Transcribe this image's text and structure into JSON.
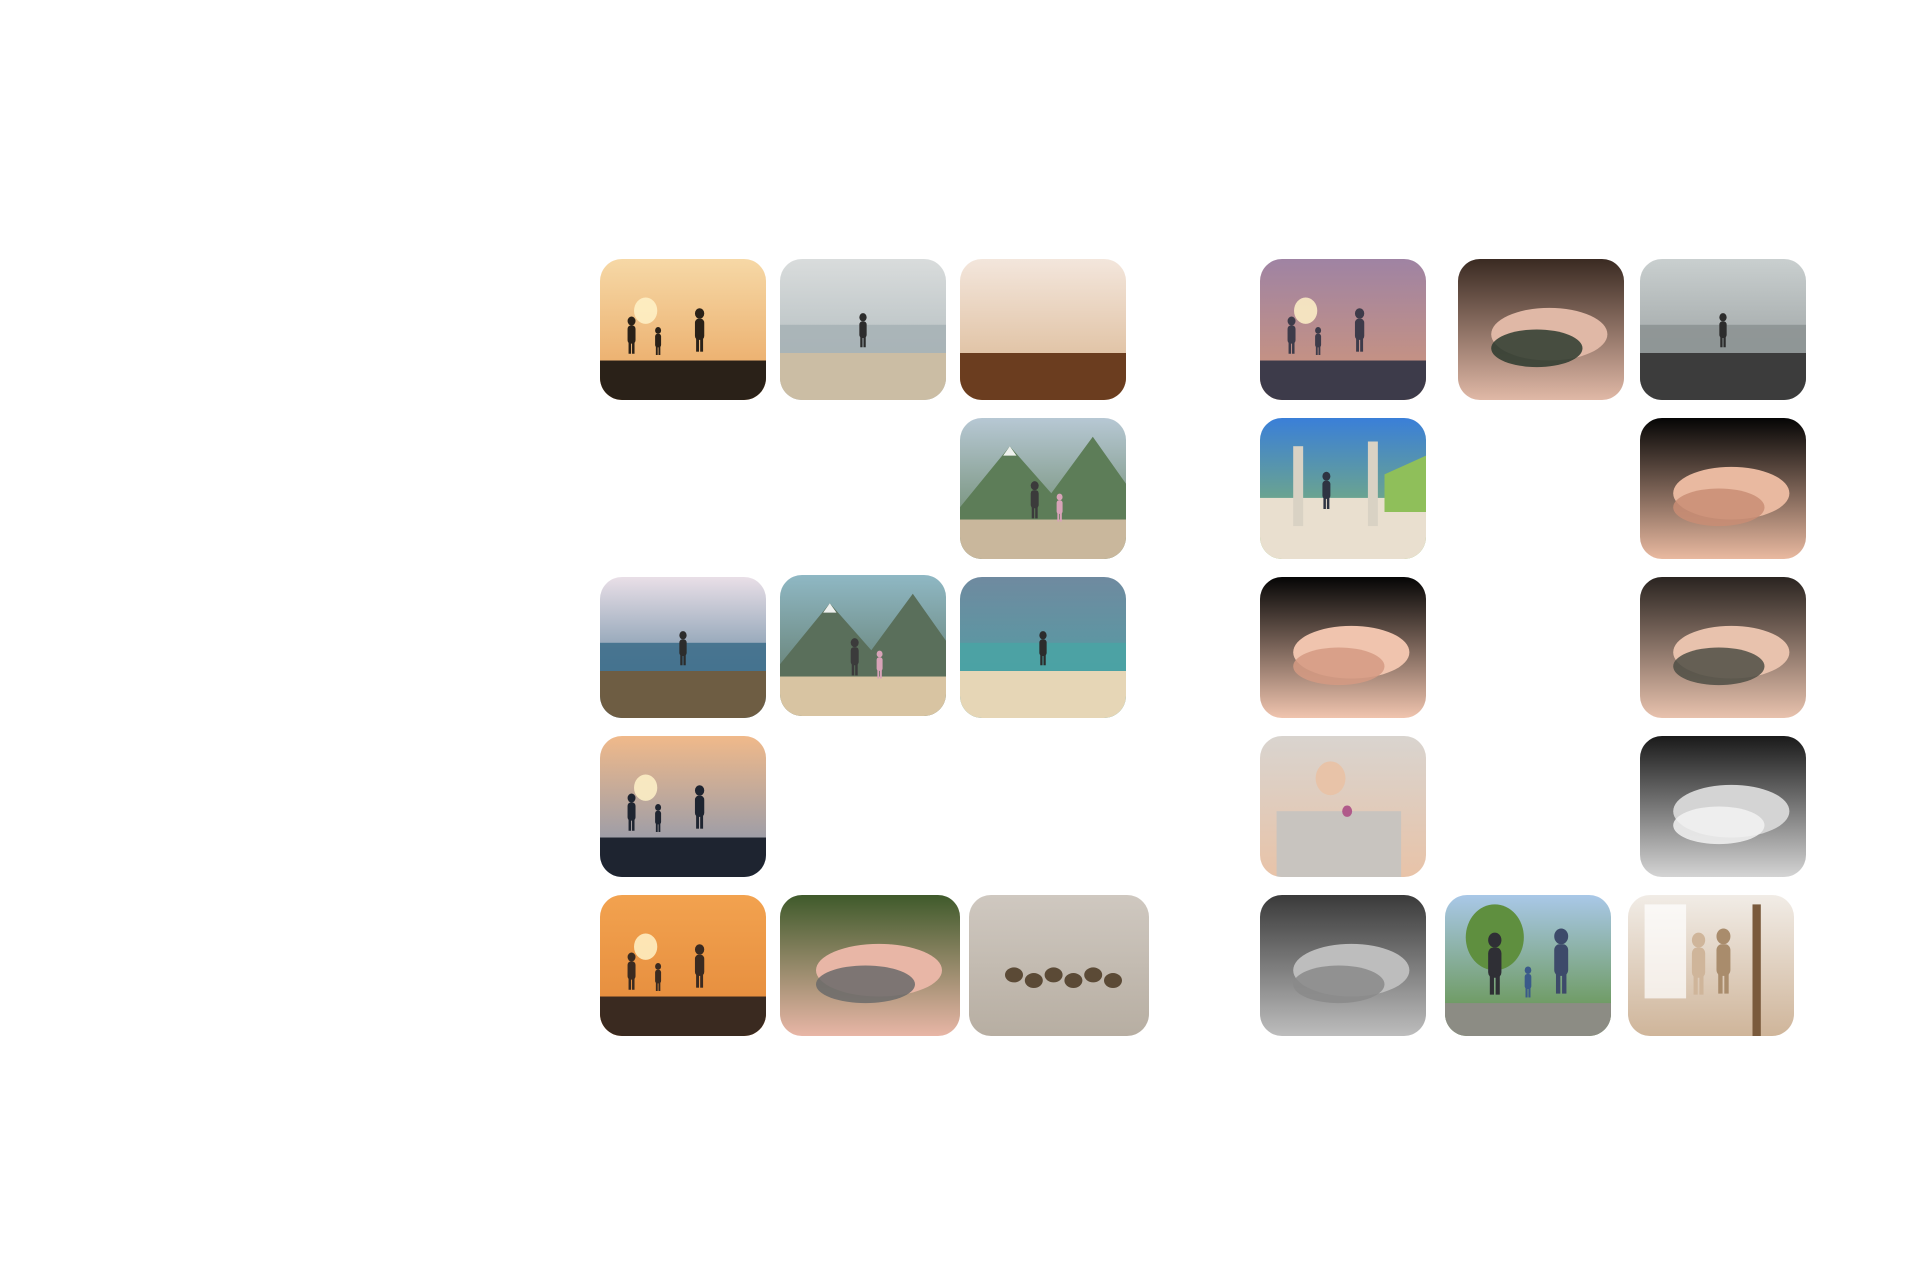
{
  "gallery": {
    "photos": [
      {
        "name": "photo-family-sunset-silhouette",
        "scene": "sunset",
        "colors": [
          "#f6d8a6",
          "#e9a45e",
          "#2a2118"
        ]
      },
      {
        "name": "photo-family-beach-gray",
        "scene": "beach",
        "colors": [
          "#d9dcdc",
          "#a7b3b6",
          "#cbbda4"
        ]
      },
      {
        "name": "photo-mother-child-beach-hug",
        "scene": "beach-warm",
        "colors": [
          "#f3e6dc",
          "#d9b48d",
          "#6b3d1f"
        ]
      },
      {
        "name": "photo-parent-child-lake",
        "scene": "mountain-lake",
        "colors": [
          "#b7c8d4",
          "#5d7d58",
          "#c9b79c"
        ]
      },
      {
        "name": "photo-child-ocean-cliff",
        "scene": "ocean",
        "colors": [
          "#e9dfe7",
          "#3f6f8c",
          "#6e5d43"
        ]
      },
      {
        "name": "photo-family-mountain-beach",
        "scene": "mountain",
        "colors": [
          "#8fb8c4",
          "#5a6f5b",
          "#d8c4a2"
        ]
      },
      {
        "name": "photo-beach-cloudy-sky",
        "scene": "cloudy-beach",
        "colors": [
          "#6f8aa0",
          "#4aa3a4",
          "#e6d6b6"
        ]
      },
      {
        "name": "photo-family-pier-sunset",
        "scene": "pier",
        "colors": [
          "#f0b98a",
          "#7f93b2",
          "#1e2430"
        ]
      },
      {
        "name": "photo-family-beach-sunset-walk",
        "scene": "orange-sunset",
        "colors": [
          "#f2a24f",
          "#e3893a",
          "#3a2a20"
        ]
      },
      {
        "name": "photo-holding-hands-green",
        "scene": "hands-green",
        "colors": [
          "#3f5a2b",
          "#e8b6a6",
          "#6a6a6a"
        ]
      },
      {
        "name": "photo-ducklings-sand",
        "scene": "ducks",
        "colors": [
          "#cfc8c0",
          "#b7aea2",
          "#5b4a36"
        ]
      },
      {
        "name": "photo-family-rocky-shore-dusk",
        "scene": "dusk",
        "colors": [
          "#9f83a3",
          "#d29779",
          "#3d3b4a"
        ]
      },
      {
        "name": "photo-newborn-head-tattoo-hand",
        "scene": "newborn",
        "colors": [
          "#3a2a22",
          "#e0b8a6",
          "#2b3a2e"
        ]
      },
      {
        "name": "photo-mother-baby-coast",
        "scene": "gray-coast",
        "colors": [
          "#c9cfcf",
          "#8d9394",
          "#3c3c3c"
        ]
      },
      {
        "name": "photo-child-beach-posts",
        "scene": "posts",
        "colors": [
          "#3a7fd8",
          "#8fbf5a",
          "#e9dfcf"
        ]
      },
      {
        "name": "photo-hands-black-background",
        "scene": "hands-dark",
        "colors": [
          "#050505",
          "#e9b9a0",
          "#c98d74"
        ]
      },
      {
        "name": "photo-adult-hand-baby-hand",
        "scene": "hands-dark",
        "colors": [
          "#050505",
          "#f0c4ae",
          "#d59a82"
        ]
      },
      {
        "name": "photo-baby-feet-in-hands",
        "scene": "baby-feet",
        "colors": [
          "#2a2420",
          "#e8c2ad",
          "#4e4e44"
        ]
      },
      {
        "name": "photo-baby-in-basket-flower",
        "scene": "baby-basket",
        "colors": [
          "#d9d4cf",
          "#e8c3a8",
          "#c8c4bf"
        ]
      },
      {
        "name": "photo-hands-black-white",
        "scene": "bw-hands",
        "colors": [
          "#1a1a1a",
          "#d4d4d4",
          "#f2f2f2"
        ]
      },
      {
        "name": "photo-hands-bw-closeup",
        "scene": "bw-hands",
        "colors": [
          "#3a3a3a",
          "#bdbdbd",
          "#8a8a8a"
        ]
      },
      {
        "name": "photo-family-park-walk",
        "scene": "park",
        "colors": [
          "#a9c8e8",
          "#5f8f3f",
          "#3d4a6a"
        ]
      },
      {
        "name": "photo-family-dancing-room",
        "scene": "room",
        "colors": [
          "#f1ece6",
          "#cfb59a",
          "#a98c6c"
        ]
      }
    ]
  }
}
